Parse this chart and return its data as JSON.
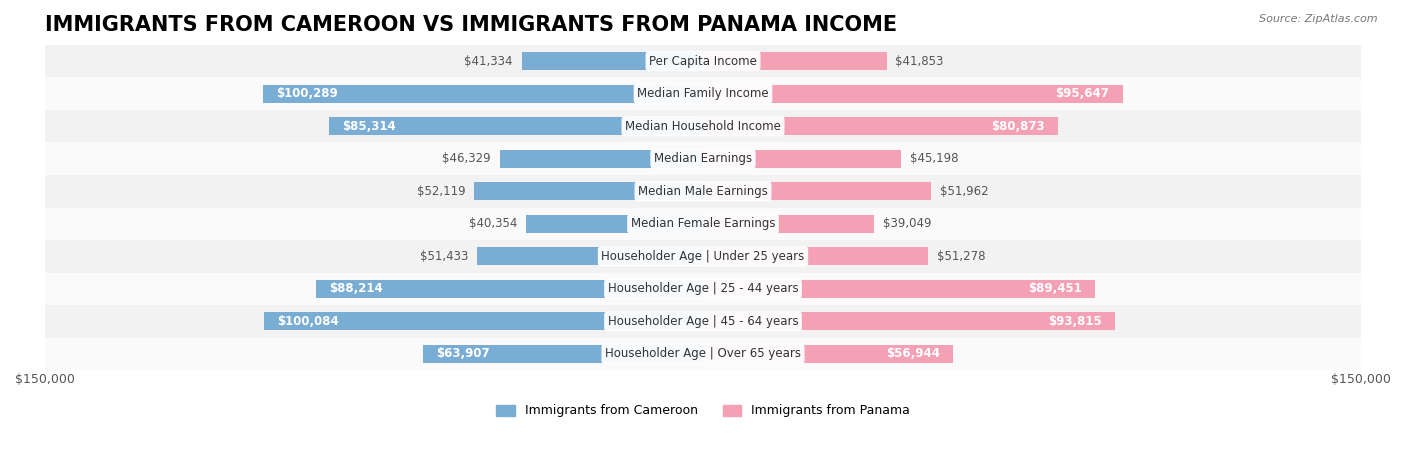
{
  "title": "IMMIGRANTS FROM CAMEROON VS IMMIGRANTS FROM PANAMA INCOME",
  "source": "Source: ZipAtlas.com",
  "categories": [
    "Per Capita Income",
    "Median Family Income",
    "Median Household Income",
    "Median Earnings",
    "Median Male Earnings",
    "Median Female Earnings",
    "Householder Age | Under 25 years",
    "Householder Age | 25 - 44 years",
    "Householder Age | 45 - 64 years",
    "Householder Age | Over 65 years"
  ],
  "cameroon_values": [
    41334,
    100289,
    85314,
    46329,
    52119,
    40354,
    51433,
    88214,
    100084,
    63907
  ],
  "panama_values": [
    41853,
    95647,
    80873,
    45198,
    51962,
    39049,
    51278,
    89451,
    93815,
    56944
  ],
  "cameroon_labels": [
    "$41,334",
    "$100,289",
    "$85,314",
    "$46,329",
    "$52,119",
    "$40,354",
    "$51,433",
    "$88,214",
    "$100,084",
    "$63,907"
  ],
  "panama_labels": [
    "$41,853",
    "$95,647",
    "$80,873",
    "$45,198",
    "$51,962",
    "$39,049",
    "$51,278",
    "$89,451",
    "$93,815",
    "$56,944"
  ],
  "cameroon_color": "#7aadd4",
  "panama_color": "#f4a0b5",
  "cameroon_color_dark": "#5b9ec9",
  "panama_color_dark": "#f07090",
  "max_value": 150000,
  "x_tick_label_left": "$150,000",
  "x_tick_label_right": "$150,000",
  "legend_cameroon": "Immigrants from Cameroon",
  "legend_panama": "Immigrants from Panama",
  "bar_height": 0.55,
  "row_bg_color": "#f0f0f0",
  "row_alt_bg_color": "#ffffff",
  "title_fontsize": 15,
  "label_fontsize": 8.5,
  "category_fontsize": 8.5
}
